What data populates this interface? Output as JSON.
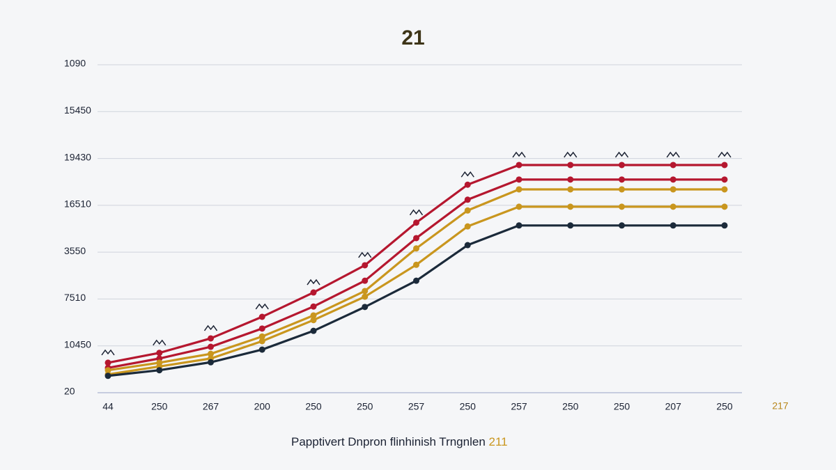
{
  "chart_data": {
    "type": "line",
    "title": "21",
    "x_label": "Papptivert Dnpron flinhinish Trngnlen",
    "x_label_note": "211",
    "annotation": "217",
    "categories": [
      "44",
      "250",
      "267",
      "200",
      "250",
      "250",
      "257",
      "250",
      "257",
      "250",
      "250",
      "207",
      "250"
    ],
    "ylim": [
      0,
      7
    ],
    "yticks": [
      {
        "value": 0,
        "label": "20"
      },
      {
        "value": 1,
        "label": "10450"
      },
      {
        "value": 2,
        "label": "7510"
      },
      {
        "value": 3,
        "label": "3550"
      },
      {
        "value": 4,
        "label": "16510"
      },
      {
        "value": 5,
        "label": "19430"
      },
      {
        "value": 6,
        "label": "15450"
      },
      {
        "value": 7,
        "label": "1090"
      }
    ],
    "grid": true,
    "series": [
      {
        "color": "#b5172f",
        "values": [
          0.64,
          0.85,
          1.16,
          1.62,
          2.14,
          2.72,
          3.63,
          4.44,
          4.86,
          4.86,
          4.86,
          4.86,
          4.86
        ]
      },
      {
        "color": "#b5172f",
        "values": [
          0.53,
          0.73,
          0.98,
          1.37,
          1.84,
          2.39,
          3.3,
          4.12,
          4.55,
          4.55,
          4.55,
          4.55,
          4.55
        ]
      },
      {
        "color": "#c9961e",
        "values": [
          0.48,
          0.64,
          0.83,
          1.2,
          1.65,
          2.17,
          3.08,
          3.89,
          4.34,
          4.34,
          4.34,
          4.34,
          4.34
        ]
      },
      {
        "color": "#c9961e",
        "values": [
          0.39,
          0.56,
          0.73,
          1.1,
          1.55,
          2.05,
          2.73,
          3.55,
          3.97,
          3.97,
          3.97,
          3.97,
          3.97
        ]
      },
      {
        "color": "#1b2a3a",
        "values": [
          0.36,
          0.48,
          0.65,
          0.92,
          1.32,
          1.83,
          2.39,
          3.15,
          3.57,
          3.57,
          3.57,
          3.57,
          3.57
        ]
      }
    ]
  }
}
